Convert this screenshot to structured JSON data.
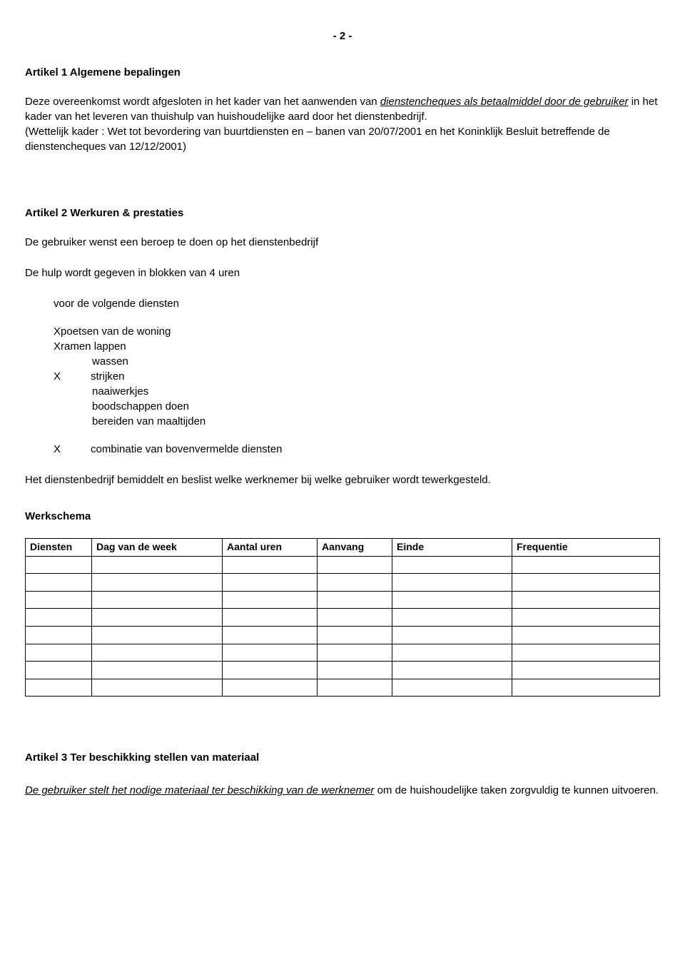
{
  "page_number": "- 2 -",
  "article1": {
    "heading": "Artikel 1 Algemene bepalingen",
    "para_pre": "Deze overeenkomst wordt afgesloten in het kader van het aanwenden van ",
    "para_underline": "dienstencheques als betaalmiddel door de gebruiker",
    "para_post": " in het kader van het leveren van thuishulp van huishoudelijke aard door het dienstenbedrijf.",
    "legal": "(Wettelijk kader : Wet tot bevordering van buurtdiensten en – banen van 20/07/2001 en het Koninklijk Besluit betreffende de dienstencheques van 12/12/2001)"
  },
  "article2": {
    "heading": "Artikel 2 Werkuren & prestaties",
    "p1": "De gebruiker wenst een beroep te doen op het dienstenbedrijf",
    "p2": "De hulp wordt gegeven in blokken van 4 uren",
    "sub": "voor de volgende diensten",
    "s1": "Xpoetsen van de woning",
    "s2": "Xramen lappen",
    "s3": "wassen",
    "s4a": "X",
    "s4b": "strijken",
    "s5": "naaiwerkjes",
    "s6": "boodschappen doen",
    "s7": "bereiden van maaltijden",
    "combX": "X",
    "comb": "combinatie van bovenvermelde diensten",
    "employer": "Het dienstenbedrijf bemiddelt en beslist welke werknemer bij welke gebruiker wordt tewerkgesteld."
  },
  "werkschema": {
    "heading": "Werkschema",
    "columns": [
      "Diensten",
      "Dag van de week",
      "Aantal uren",
      "Aanvang",
      "Einde",
      "Frequentie"
    ],
    "row_count": 8
  },
  "article3": {
    "heading": "Artikel 3 Ter beschikking stellen van materiaal",
    "line1": "De gebruiker stelt het nodige materiaal ter beschikking van de werknemer",
    "line2": " om de huishoudelijke taken zorgvuldig te kunnen uitvoeren."
  }
}
